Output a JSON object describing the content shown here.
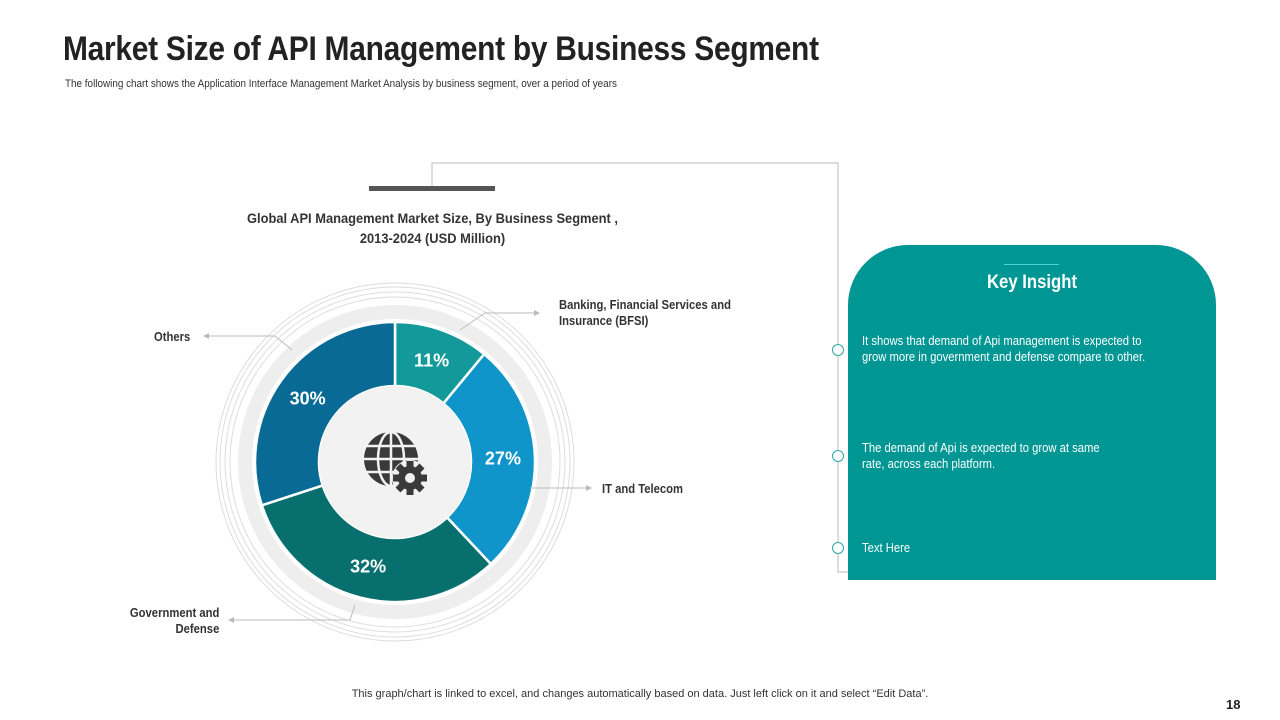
{
  "title": "Market Size of API Management by Business Segment",
  "subtitle": "The following chart shows the Application  Interface Management Market Analysis  by business segment, over a period of years",
  "chart_data": {
    "type": "pie",
    "title": "Global API Management Market Size, By Business Segment , 2013-2024 (USD Million)",
    "title_lines": [
      "Global API Management Market Size, By Business Segment ,",
      "2013-2024 (USD Million)"
    ],
    "donut": true,
    "center_icon": "globe-gear-icon",
    "slices": [
      {
        "label": "Banking, Financial Services and Insurance (BFSI)",
        "label_lines": [
          "Banking, Financial Services and",
          "Insurance (BFSI)"
        ],
        "value": 11,
        "data_label": "11%",
        "color": "#13999a"
      },
      {
        "label": "IT and Telecom",
        "label_lines": [
          "IT and Telecom"
        ],
        "value": 27,
        "data_label": "27%",
        "color": "#0f95c9"
      },
      {
        "label": "Government and Defense",
        "label_lines": [
          "Government and",
          "Defense"
        ],
        "value": 32,
        "data_label": "32%",
        "color": "#07706f"
      },
      {
        "label": "Others",
        "label_lines": [
          "Others"
        ],
        "value": 30,
        "data_label": "30%",
        "color": "#0a6a96"
      }
    ]
  },
  "insight": {
    "title": "Key Insight",
    "items": [
      [
        "It shows that demand of Api management is expected to",
        "grow more in government and defense compare to other."
      ],
      [
        "The demand of Api is expected to grow at same",
        "rate, across each platform."
      ],
      [
        "Text Here"
      ]
    ],
    "color": "#009694"
  },
  "footer": "This graph/chart is linked to excel, and changes automatically  based on data. Just left click on it and select “Edit Data”.",
  "page_number": "18"
}
